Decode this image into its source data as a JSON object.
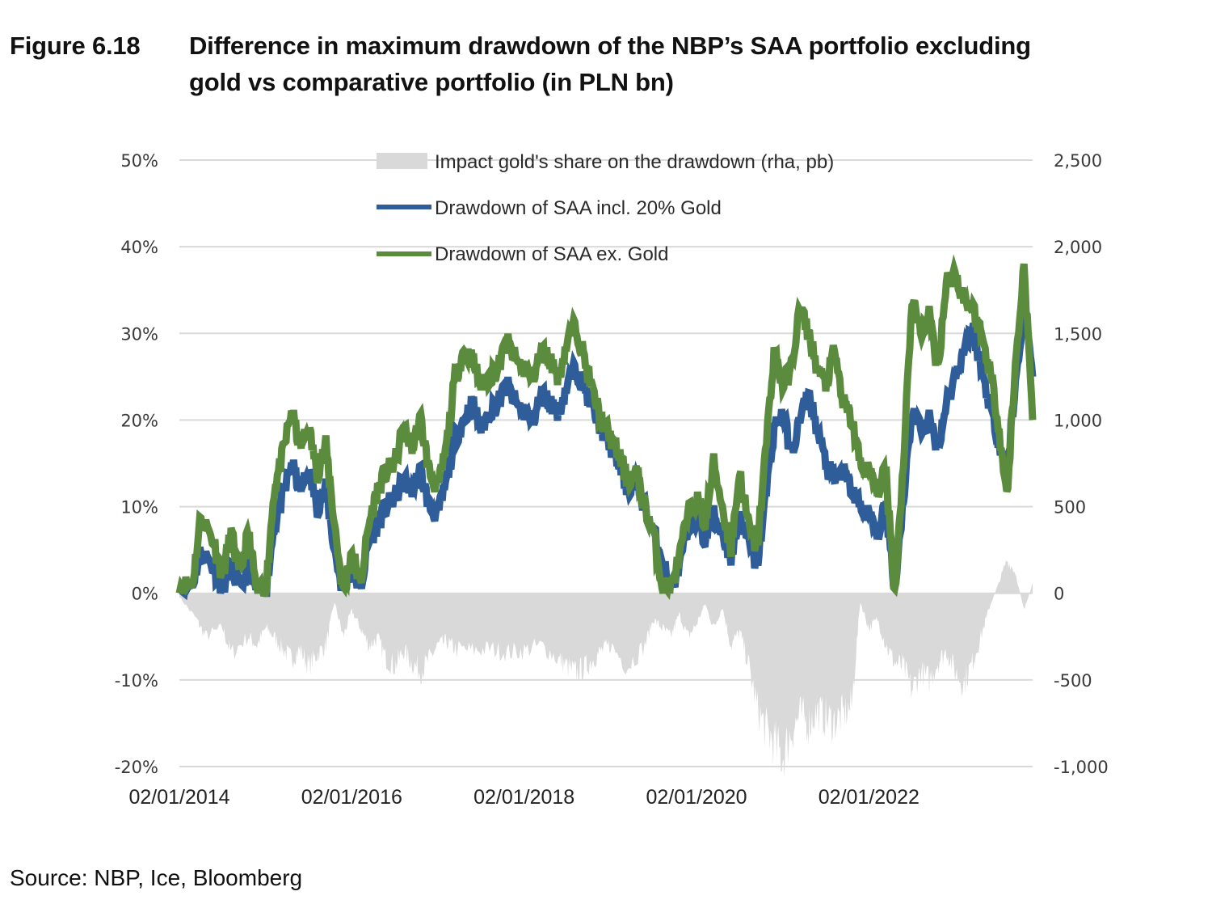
{
  "figure": {
    "label": "Figure 6.18",
    "title_line1": "Difference in maximum drawdown of the NBP’s SAA portfolio excluding",
    "title_line2": "gold vs comparative portfolio (in PLN bn)",
    "source": "Source: NBP, Ice, Bloomberg"
  },
  "chart_data": {
    "type": "line",
    "title": "Difference in maximum drawdown of the NBP’s SAA portfolio excluding gold vs comparative portfolio (in PLN bn)",
    "xlabel": "",
    "ylabel": "",
    "y_left": {
      "min": -0.2,
      "max": 0.5,
      "step": 0.1,
      "ticks": [
        "50%",
        "40%",
        "30%",
        "20%",
        "10%",
        "0%",
        "-10%",
        "-20%"
      ]
    },
    "y_right": {
      "min": -1000,
      "max": 2500,
      "step": 500,
      "ticks": [
        "2,500",
        "2,000",
        "1,500",
        "1,000",
        "500",
        "0",
        "-500",
        "-1,000"
      ]
    },
    "x_range": [
      2014.0,
      2023.9
    ],
    "x_ticks": [
      {
        "label": "02/01/2014",
        "x": 2014.0
      },
      {
        "label": "02/01/2016",
        "x": 2016.0
      },
      {
        "label": "02/01/2018",
        "x": 2018.0
      },
      {
        "label": "02/01/2020",
        "x": 2020.0
      },
      {
        "label": "02/01/2022",
        "x": 2022.0
      }
    ],
    "grid": true,
    "legend_position": "top-center",
    "colors": {
      "impact": "#d9d9d9",
      "incl_gold": "#2e5d9a",
      "ex_gold": "#5b8c3e",
      "grid": "#d9d9d9"
    },
    "series": [
      {
        "name": "Impact gold's share on the drawdown (rha, pb)",
        "axis": "right",
        "kind": "area",
        "x": [
          2014.0,
          2014.2,
          2014.3,
          2014.5,
          2014.6,
          2014.8,
          2014.9,
          2015.0,
          2015.1,
          2015.2,
          2015.3,
          2015.4,
          2015.5,
          2015.6,
          2015.7,
          2015.8,
          2015.9,
          2016.0,
          2016.1,
          2016.2,
          2016.3,
          2016.4,
          2016.5,
          2016.6,
          2016.7,
          2016.8,
          2016.9,
          2017.0,
          2017.1,
          2017.2,
          2017.4,
          2017.6,
          2017.8,
          2018.0,
          2018.2,
          2018.4,
          2018.5,
          2018.6,
          2018.7,
          2018.8,
          2018.9,
          2019.0,
          2019.2,
          2019.4,
          2019.5,
          2019.6,
          2019.7,
          2019.8,
          2019.9,
          2020.0,
          2020.1,
          2020.2,
          2020.3,
          2020.4,
          2020.5,
          2020.6,
          2020.7,
          2020.8,
          2020.9,
          2021.0,
          2021.1,
          2021.2,
          2021.3,
          2021.4,
          2021.5,
          2021.6,
          2021.7,
          2021.8,
          2021.9,
          2022.0,
          2022.1,
          2022.2,
          2022.3,
          2022.4,
          2022.5,
          2022.6,
          2022.7,
          2022.8,
          2022.9,
          2023.0,
          2023.1,
          2023.2,
          2023.3,
          2023.4,
          2023.5,
          2023.6,
          2023.7,
          2023.8,
          2023.9
        ],
        "values": [
          -20,
          -150,
          -250,
          -200,
          -350,
          -250,
          -300,
          -200,
          -250,
          -320,
          -380,
          -320,
          -420,
          -350,
          -300,
          -50,
          -250,
          -100,
          -200,
          -300,
          -260,
          -380,
          -420,
          -330,
          -400,
          -450,
          -380,
          -300,
          -280,
          -320,
          -330,
          -320,
          -340,
          -330,
          -300,
          -380,
          -420,
          -460,
          -430,
          -380,
          -330,
          -300,
          -420,
          -300,
          -150,
          -200,
          -250,
          -120,
          -250,
          -180,
          -60,
          -200,
          -80,
          -300,
          -220,
          -400,
          -650,
          -780,
          -860,
          -950,
          -800,
          -700,
          -750,
          -680,
          -720,
          -740,
          -700,
          -650,
          -50,
          -200,
          -150,
          -300,
          -400,
          -420,
          -560,
          -450,
          -500,
          -400,
          -330,
          -450,
          -520,
          -400,
          -250,
          -80,
          50,
          190,
          120,
          -100,
          60
        ]
      },
      {
        "name": "Drawdown of SAA incl. 20% Gold",
        "axis": "left",
        "kind": "line",
        "x": [
          2014.0,
          2014.15,
          2014.25,
          2014.4,
          2014.5,
          2014.6,
          2014.7,
          2014.8,
          2014.9,
          2015.0,
          2015.1,
          2015.2,
          2015.3,
          2015.4,
          2015.5,
          2015.6,
          2015.7,
          2015.8,
          2015.9,
          2016.0,
          2016.1,
          2016.2,
          2016.3,
          2016.4,
          2016.5,
          2016.6,
          2016.7,
          2016.8,
          2016.9,
          2017.0,
          2017.1,
          2017.2,
          2017.3,
          2017.4,
          2017.5,
          2017.6,
          2017.7,
          2017.8,
          2017.9,
          2018.0,
          2018.1,
          2018.2,
          2018.3,
          2018.4,
          2018.5,
          2018.6,
          2018.7,
          2018.8,
          2018.9,
          2019.0,
          2019.1,
          2019.2,
          2019.3,
          2019.4,
          2019.5,
          2019.6,
          2019.7,
          2019.8,
          2019.9,
          2020.0,
          2020.1,
          2020.2,
          2020.3,
          2020.4,
          2020.5,
          2020.6,
          2020.7,
          2020.8,
          2020.9,
          2021.0,
          2021.1,
          2021.2,
          2021.3,
          2021.4,
          2021.5,
          2021.6,
          2021.7,
          2021.8,
          2021.9,
          2022.0,
          2022.1,
          2022.2,
          2022.3,
          2022.4,
          2022.5,
          2022.6,
          2022.7,
          2022.8,
          2022.9,
          2023.0,
          2023.1,
          2023.2,
          2023.3,
          2023.4,
          2023.5,
          2023.6,
          2023.7,
          2023.8,
          2023.9
        ],
        "values": [
          0.005,
          0.01,
          0.05,
          0.03,
          0.005,
          0.03,
          0.005,
          0.03,
          0.0,
          0.0,
          0.08,
          0.11,
          0.15,
          0.12,
          0.14,
          0.1,
          0.12,
          0.05,
          0.0,
          0.03,
          0.005,
          0.06,
          0.08,
          0.1,
          0.11,
          0.13,
          0.12,
          0.14,
          0.1,
          0.09,
          0.13,
          0.18,
          0.2,
          0.22,
          0.19,
          0.21,
          0.22,
          0.24,
          0.22,
          0.21,
          0.2,
          0.23,
          0.22,
          0.21,
          0.24,
          0.26,
          0.24,
          0.21,
          0.19,
          0.17,
          0.15,
          0.12,
          0.13,
          0.1,
          0.07,
          0.04,
          0.005,
          0.03,
          0.07,
          0.09,
          0.06,
          0.09,
          0.07,
          0.04,
          0.09,
          0.06,
          0.03,
          0.11,
          0.19,
          0.21,
          0.16,
          0.2,
          0.23,
          0.19,
          0.15,
          0.13,
          0.14,
          0.12,
          0.1,
          0.09,
          0.07,
          0.1,
          0.005,
          0.11,
          0.21,
          0.19,
          0.2,
          0.17,
          0.22,
          0.25,
          0.28,
          0.31,
          0.26,
          0.22,
          0.18,
          0.14,
          0.24,
          0.33,
          0.25
        ]
      },
      {
        "name": "Drawdown of SAA ex. Gold",
        "axis": "left",
        "kind": "line",
        "x": [
          2014.0,
          2014.15,
          2014.25,
          2014.4,
          2014.5,
          2014.6,
          2014.7,
          2014.8,
          2014.9,
          2015.0,
          2015.1,
          2015.2,
          2015.3,
          2015.4,
          2015.5,
          2015.6,
          2015.7,
          2015.8,
          2015.9,
          2016.0,
          2016.1,
          2016.2,
          2016.3,
          2016.4,
          2016.5,
          2016.6,
          2016.7,
          2016.8,
          2016.9,
          2017.0,
          2017.1,
          2017.2,
          2017.3,
          2017.4,
          2017.5,
          2017.6,
          2017.7,
          2017.8,
          2017.9,
          2018.0,
          2018.1,
          2018.2,
          2018.3,
          2018.4,
          2018.5,
          2018.6,
          2018.7,
          2018.8,
          2018.9,
          2019.0,
          2019.1,
          2019.2,
          2019.3,
          2019.4,
          2019.5,
          2019.6,
          2019.7,
          2019.8,
          2019.9,
          2020.0,
          2020.1,
          2020.2,
          2020.3,
          2020.4,
          2020.5,
          2020.6,
          2020.7,
          2020.8,
          2020.9,
          2021.0,
          2021.1,
          2021.2,
          2021.3,
          2021.4,
          2021.5,
          2021.6,
          2021.7,
          2021.8,
          2021.9,
          2022.0,
          2022.1,
          2022.2,
          2022.3,
          2022.4,
          2022.5,
          2022.6,
          2022.7,
          2022.8,
          2022.9,
          2023.0,
          2023.1,
          2023.2,
          2023.3,
          2023.4,
          2023.5,
          2023.6,
          2023.7,
          2023.8,
          2023.9
        ],
        "values": [
          0.01,
          0.01,
          0.09,
          0.06,
          0.02,
          0.07,
          0.02,
          0.07,
          0.0,
          0.0,
          0.12,
          0.16,
          0.21,
          0.17,
          0.19,
          0.14,
          0.17,
          0.08,
          0.0,
          0.05,
          0.01,
          0.08,
          0.12,
          0.14,
          0.15,
          0.19,
          0.17,
          0.2,
          0.14,
          0.12,
          0.17,
          0.25,
          0.28,
          0.27,
          0.24,
          0.25,
          0.26,
          0.29,
          0.27,
          0.26,
          0.25,
          0.28,
          0.27,
          0.25,
          0.29,
          0.31,
          0.27,
          0.23,
          0.2,
          0.18,
          0.16,
          0.13,
          0.14,
          0.1,
          0.07,
          0.01,
          0.005,
          0.04,
          0.09,
          0.11,
          0.08,
          0.15,
          0.1,
          0.05,
          0.14,
          0.08,
          0.05,
          0.16,
          0.28,
          0.24,
          0.26,
          0.33,
          0.3,
          0.26,
          0.24,
          0.28,
          0.22,
          0.2,
          0.15,
          0.14,
          0.12,
          0.14,
          0.0,
          0.15,
          0.34,
          0.3,
          0.32,
          0.26,
          0.36,
          0.37,
          0.34,
          0.33,
          0.3,
          0.26,
          0.2,
          0.11,
          0.26,
          0.38,
          0.2
        ]
      }
    ]
  }
}
